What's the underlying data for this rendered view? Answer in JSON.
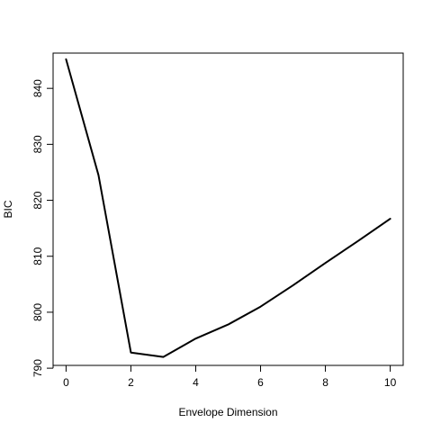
{
  "chart_data": {
    "type": "line",
    "title": "",
    "xlabel": "Envelope Dimension",
    "ylabel": "BIC",
    "x": [
      0,
      1,
      2,
      3,
      4,
      5,
      6,
      7,
      8,
      9,
      10
    ],
    "series": [
      {
        "values": [
          845.2,
          824.5,
          792.8,
          792.0,
          795.3,
          797.8,
          801.0,
          804.8,
          808.8,
          812.7,
          816.7
        ]
      }
    ],
    "xlim": [
      -0.4,
      10.4
    ],
    "ylim": [
      790.5,
      846.3
    ],
    "xticks": [
      0,
      2,
      4,
      6,
      8,
      10
    ],
    "yticks": [
      790,
      800,
      810,
      820,
      830,
      840
    ],
    "xtick_labels": [
      "0",
      "2",
      "4",
      "6",
      "8",
      "10"
    ],
    "ytick_labels": [
      "790",
      "800",
      "810",
      "820",
      "830",
      "840"
    ],
    "grid": false,
    "line_color": "#000000"
  }
}
